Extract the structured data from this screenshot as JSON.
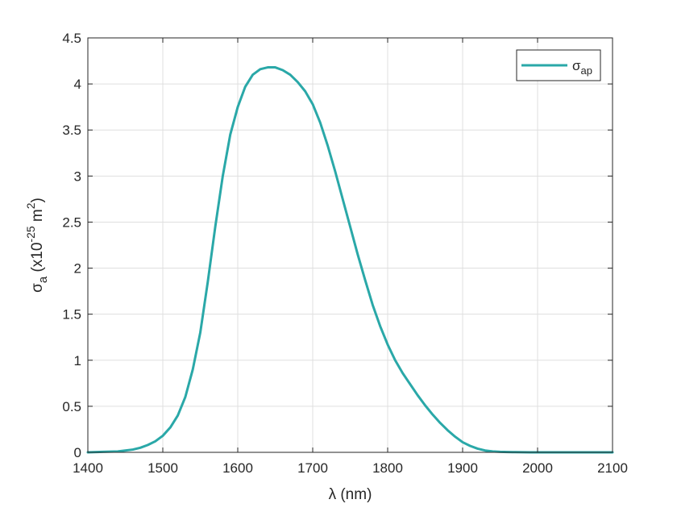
{
  "chart_data": {
    "type": "line",
    "xlabel": "λ (nm)",
    "ylabel": {
      "base": "σ",
      "base_sub": "a",
      "text1": " (x10",
      "sup1": "-25",
      "text2": " m",
      "sup2": "2",
      "text3": ")"
    },
    "xlim": [
      1400,
      2100
    ],
    "ylim": [
      0,
      4.5
    ],
    "xticks": [
      1400,
      1500,
      1600,
      1700,
      1800,
      1900,
      2000,
      2100
    ],
    "yticks": [
      0,
      0.5,
      1,
      1.5,
      2,
      2.5,
      3,
      3.5,
      4,
      4.5
    ],
    "xtick_labels": [
      "1400",
      "1500",
      "1600",
      "1700",
      "1800",
      "1900",
      "2000",
      "2100"
    ],
    "ytick_labels": [
      "0",
      "0.5",
      "1",
      "1.5",
      "2",
      "2.5",
      "3",
      "3.5",
      "4",
      "4.5"
    ],
    "grid": true,
    "legend_position": "top-right",
    "series": [
      {
        "name": "σ",
        "name_sub": "ap",
        "color": "#2aa8a8",
        "x": [
          1400,
          1420,
          1440,
          1460,
          1470,
          1480,
          1490,
          1500,
          1510,
          1520,
          1530,
          1540,
          1550,
          1560,
          1570,
          1580,
          1590,
          1600,
          1610,
          1620,
          1630,
          1640,
          1650,
          1660,
          1670,
          1680,
          1690,
          1700,
          1710,
          1720,
          1730,
          1740,
          1750,
          1760,
          1770,
          1780,
          1790,
          1800,
          1810,
          1820,
          1830,
          1840,
          1850,
          1860,
          1870,
          1880,
          1890,
          1900,
          1910,
          1920,
          1930,
          1940,
          1950,
          1960,
          1970,
          1980,
          1990,
          2000,
          2050,
          2100
        ],
        "y": [
          0.0,
          0.005,
          0.01,
          0.03,
          0.05,
          0.08,
          0.12,
          0.18,
          0.27,
          0.4,
          0.6,
          0.9,
          1.3,
          1.85,
          2.45,
          3.0,
          3.45,
          3.75,
          3.97,
          4.1,
          4.16,
          4.18,
          4.18,
          4.15,
          4.1,
          4.02,
          3.92,
          3.78,
          3.58,
          3.33,
          3.05,
          2.75,
          2.45,
          2.15,
          1.87,
          1.6,
          1.37,
          1.17,
          1.0,
          0.86,
          0.74,
          0.62,
          0.51,
          0.41,
          0.32,
          0.24,
          0.17,
          0.11,
          0.07,
          0.04,
          0.02,
          0.01,
          0.005,
          0.003,
          0.002,
          0.001,
          0.0,
          0.0,
          0.0,
          0.0
        ]
      }
    ]
  }
}
